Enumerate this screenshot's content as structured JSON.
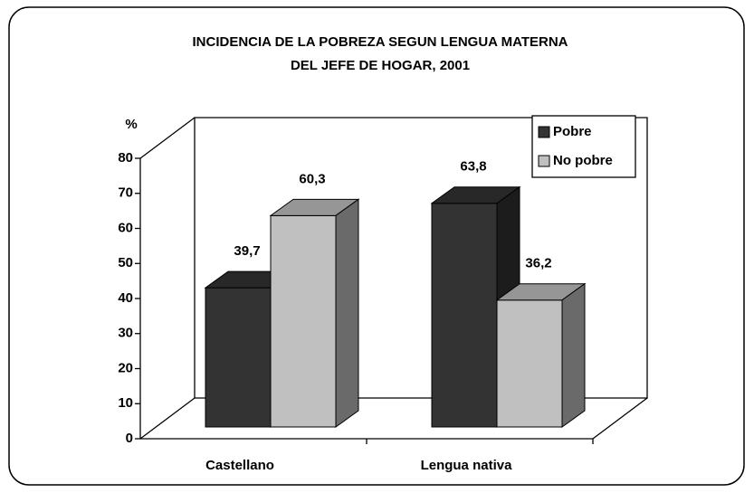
{
  "chart_data": {
    "type": "bar3d",
    "title": [
      "INCIDENCIA DE LA POBREZA SEGUN LENGUA MATERNA",
      "DEL JEFE DE HOGAR, 2001"
    ],
    "y_label": "%",
    "categories": [
      "Castellano",
      "Lengua nativa"
    ],
    "series": [
      {
        "name": "Pobre",
        "color": "#333333",
        "values": [
          39.7,
          63.8
        ],
        "value_labels": [
          "39,7",
          "63,8"
        ]
      },
      {
        "name": "No pobre",
        "color": "#c0c0c0",
        "values": [
          60.3,
          36.2
        ],
        "value_labels": [
          "60,3",
          "36,2"
        ]
      }
    ],
    "ylim": [
      0,
      80
    ],
    "yticks": [
      0,
      10,
      20,
      30,
      40,
      50,
      60,
      70,
      80
    ],
    "legend": "top-right"
  }
}
